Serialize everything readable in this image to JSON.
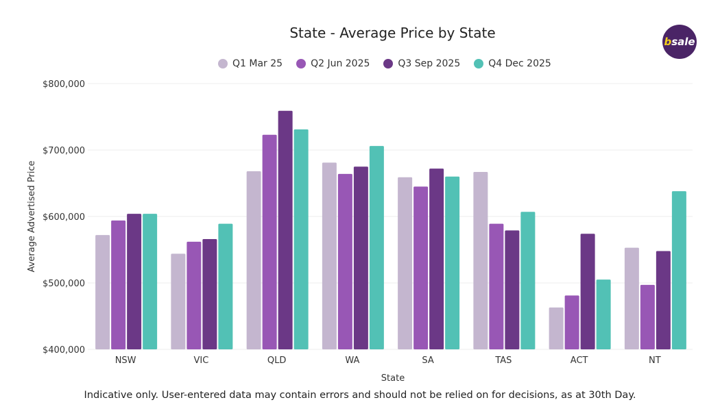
{
  "logo_text": "bsale",
  "footer": "Indicative only. User-entered data may contain errors and should not be relied on for decisions, as at 30th Day.",
  "chart_data": {
    "type": "bar",
    "title": "State - Average Price by State",
    "xlabel": "State",
    "ylabel": "Average Advertised Price",
    "ylim": [
      400000,
      800000
    ],
    "yticks": [
      400000,
      500000,
      600000,
      700000,
      800000
    ],
    "ytick_labels": [
      "$400,000",
      "$500,000",
      "$600,000",
      "$700,000",
      "$800,000"
    ],
    "grid": true,
    "legend": "top",
    "categories": [
      "NSW",
      "VIC",
      "QLD",
      "WA",
      "SA",
      "TAS",
      "ACT",
      "NT"
    ],
    "series": [
      {
        "name": "Q1 Mar 25",
        "color": "#c4b6cf",
        "values": [
          572000,
          544000,
          668000,
          681000,
          659000,
          667000,
          463000,
          553000
        ]
      },
      {
        "name": "Q2 Jun 2025",
        "color": "#9857b5",
        "values": [
          594000,
          562000,
          723000,
          664000,
          645000,
          589000,
          481000,
          497000
        ]
      },
      {
        "name": "Q3 Sep 2025",
        "color": "#6b3886",
        "values": [
          604000,
          566000,
          759000,
          675000,
          672000,
          579000,
          574000,
          548000
        ]
      },
      {
        "name": "Q4 Dec 2025",
        "color": "#52c1b5",
        "values": [
          604000,
          589000,
          731000,
          706000,
          660000,
          607000,
          505000,
          638000
        ]
      }
    ]
  }
}
